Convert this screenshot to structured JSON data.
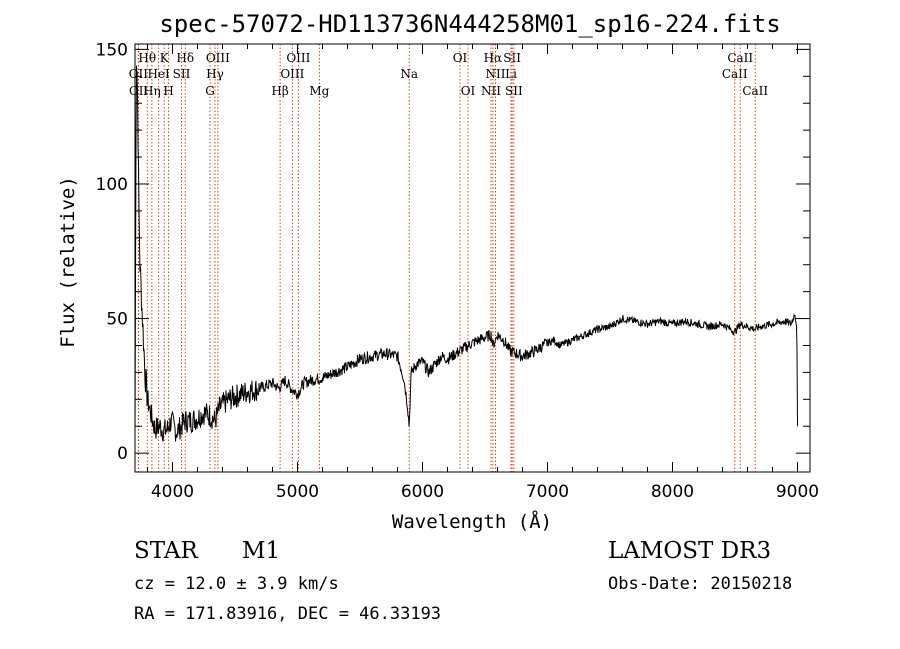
{
  "chart_data": {
    "type": "line",
    "title": "spec-57072-HD113736N444258M01_sp16-224.fits",
    "xlabel": "Wavelength (Å)",
    "ylabel": "Flux (relative)",
    "xlim": [
      3700,
      9100
    ],
    "ylim": [
      -7,
      152
    ],
    "x_ticks": [
      4000,
      5000,
      6000,
      7000,
      8000,
      9000
    ],
    "x_tick_labels": [
      "4000",
      "5000",
      "6000",
      "7000",
      "8000",
      "9000"
    ],
    "y_ticks": [
      0,
      50,
      100,
      150
    ],
    "y_tick_labels": [
      "0",
      "50",
      "100",
      "150"
    ],
    "series": [
      {
        "name": "flux",
        "x": [
          3700,
          3710,
          3720,
          3730,
          3740,
          3760,
          3780,
          3800,
          3830,
          3860,
          3900,
          3930,
          3960,
          3990,
          4030,
          4070,
          4100,
          4150,
          4200,
          4250,
          4300,
          4340,
          4380,
          4450,
          4500,
          4600,
          4700,
          4800,
          4850,
          4900,
          4950,
          5000,
          5050,
          5100,
          5200,
          5300,
          5400,
          5500,
          5600,
          5700,
          5800,
          5850,
          5880,
          5893,
          5910,
          5950,
          6000,
          6050,
          6100,
          6150,
          6200,
          6300,
          6400,
          6500,
          6550,
          6563,
          6600,
          6650,
          6700,
          6750,
          6800,
          6900,
          7000,
          7050,
          7100,
          7200,
          7300,
          7400,
          7500,
          7600,
          7700,
          7800,
          7900,
          8000,
          8100,
          8200,
          8300,
          8400,
          8498,
          8542,
          8600,
          8662,
          8700,
          8800,
          8900,
          8950,
          8980,
          8995,
          9000
        ],
        "y": [
          5,
          150,
          135,
          95,
          70,
          50,
          30,
          20,
          14,
          9,
          10,
          8,
          9,
          12,
          8,
          10,
          12,
          12,
          13,
          15,
          14,
          12,
          17,
          20,
          21,
          23,
          24,
          26,
          24,
          27,
          24,
          22,
          26,
          27,
          28,
          30,
          32,
          35,
          36,
          37,
          36,
          28,
          18,
          10,
          30,
          33,
          34,
          30,
          33,
          36,
          35,
          38,
          41,
          43,
          44,
          40,
          44,
          42,
          38,
          37,
          36,
          38,
          41,
          42,
          40,
          42,
          44,
          46,
          47,
          50,
          49,
          48,
          49,
          48,
          49,
          48,
          47,
          48,
          45,
          48,
          47,
          46,
          47,
          48,
          49,
          48,
          52,
          46,
          10
        ]
      }
    ],
    "lines": [
      {
        "name": "OII",
        "wl": 3727,
        "label": "OII",
        "row": 2
      },
      {
        "name": "OII",
        "wl": 3729,
        "label": "OII",
        "row": 3
      },
      {
        "name": "H-theta",
        "wl": 3798,
        "label": "Hθ",
        "row": 1
      },
      {
        "name": "H-eta",
        "wl": 3835,
        "label": "Hη",
        "row": 3
      },
      {
        "name": "HeI",
        "wl": 3889,
        "label": "HeI",
        "row": 2
      },
      {
        "name": "K",
        "wl": 3934,
        "label": "K",
        "row": 1
      },
      {
        "name": "H",
        "wl": 3969,
        "label": "H",
        "row": 3
      },
      {
        "name": "SII",
        "wl": 4072,
        "label": "SII",
        "row": 2
      },
      {
        "name": "H-delta",
        "wl": 4102,
        "label": "Hδ",
        "row": 1
      },
      {
        "name": "G",
        "wl": 4300,
        "label": "G",
        "row": 3
      },
      {
        "name": "H-gamma",
        "wl": 4340,
        "label": "Hγ",
        "row": 2
      },
      {
        "name": "OIII",
        "wl": 4363,
        "label": "OIII",
        "row": 1
      },
      {
        "name": "H-beta",
        "wl": 4861,
        "label": "Hβ",
        "row": 3
      },
      {
        "name": "OIII",
        "wl": 4959,
        "label": "OIII",
        "row": 2
      },
      {
        "name": "OIII",
        "wl": 5007,
        "label": "OIII",
        "row": 1
      },
      {
        "name": "Mg",
        "wl": 5175,
        "label": "Mg",
        "row": 3
      },
      {
        "name": "Na",
        "wl": 5894,
        "label": "Na",
        "row": 2
      },
      {
        "name": "OI",
        "wl": 6300,
        "label": "OI",
        "row": 1
      },
      {
        "name": "OI",
        "wl": 6364,
        "label": "OI",
        "row": 3
      },
      {
        "name": "NII",
        "wl": 6548,
        "label": "NII",
        "row": 3
      },
      {
        "name": "H-alpha",
        "wl": 6563,
        "label": "Hα",
        "row": 1
      },
      {
        "name": "NII",
        "wl": 6584,
        "label": "NII",
        "row": 2
      },
      {
        "name": "Li",
        "wl": 6708,
        "label": "Li",
        "row": 2
      },
      {
        "name": "SII",
        "wl": 6717,
        "label": "SII",
        "row": 1
      },
      {
        "name": "SII",
        "wl": 6731,
        "label": "SII",
        "row": 3
      },
      {
        "name": "CaII",
        "wl": 8498,
        "label": "CaII",
        "row": 2
      },
      {
        "name": "CaII",
        "wl": 8542,
        "label": "CaII",
        "row": 1
      },
      {
        "name": "CaII",
        "wl": 8662,
        "label": "CaII",
        "row": 3
      }
    ],
    "line_color": "#cc3300"
  },
  "info": {
    "object_class": "STAR",
    "subclass": "M1",
    "survey": "LAMOST DR3",
    "cz": "cz = 12.0 ± 3.9 km/s",
    "obs_date": "Obs-Date: 20150218",
    "radec": "RA = 171.83916, DEC =  46.33193"
  }
}
